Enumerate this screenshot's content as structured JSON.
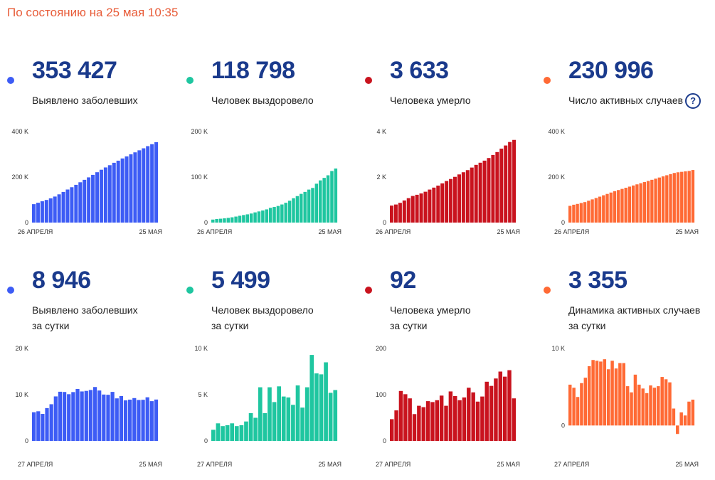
{
  "header": "По состоянию на 25 мая 10:35",
  "cards": [
    {
      "number": "353 427",
      "label": [
        "Выявлено заболевших"
      ],
      "color": "#3d5cf5"
    },
    {
      "number": "118 798",
      "label": [
        "Человек выздоровело"
      ],
      "color": "#1fc6a0"
    },
    {
      "number": "3 633",
      "label": [
        "Человека умерло"
      ],
      "color": "#c9131e"
    },
    {
      "number": "230 996",
      "label": [
        "Число активных случаев"
      ],
      "color": "#ff6a35",
      "help_icon": "question-icon",
      "help_text": "?"
    },
    {
      "number": "8 946",
      "label": [
        "Выявлено заболевших",
        "за сутки"
      ],
      "color": "#3d5cf5"
    },
    {
      "number": "5 499",
      "label": [
        "Человек выздоровело",
        "за сутки"
      ],
      "color": "#1fc6a0"
    },
    {
      "number": "92",
      "label": [
        "Человека умерло",
        "за сутки"
      ],
      "color": "#c9131e"
    },
    {
      "number": "3 355",
      "label": [
        "Динамика активных случаев",
        "за сутки"
      ],
      "color": "#ff6a35"
    }
  ],
  "chart_data": [
    {
      "type": "bar",
      "x_start": "26 АПРЕЛЯ",
      "x_end": "25 МАЯ",
      "yticks": [
        "400 K",
        "200 K",
        "0"
      ],
      "ylim": [
        0,
        400000
      ],
      "grid": false,
      "values": [
        80900,
        87100,
        93600,
        99400,
        106500,
        114400,
        124100,
        134700,
        145300,
        155400,
        165900,
        177200,
        187900,
        198700,
        209700,
        221300,
        232200,
        242300,
        252200,
        262800,
        272000,
        281800,
        290700,
        299900,
        308700,
        317600,
        326400,
        335900,
        344500,
        353427
      ]
    },
    {
      "type": "bar",
      "x_start": "26 АПРЕЛЯ",
      "x_end": "25 МАЯ",
      "yticks": [
        "200 K",
        "100 K",
        "0"
      ],
      "ylim": [
        0,
        200000
      ],
      "grid": false,
      "values": [
        6600,
        7800,
        8500,
        9300,
        10300,
        11600,
        13200,
        15000,
        16600,
        18100,
        19900,
        22400,
        24500,
        26600,
        29000,
        32400,
        34300,
        36500,
        39800,
        43500,
        48000,
        53500,
        58200,
        63100,
        67400,
        72500,
        76100,
        85400,
        92700,
        98200,
        103900,
        113300,
        118798
      ]
    },
    {
      "type": "bar",
      "x_start": "26 АПРЕЛЯ",
      "x_end": "25 МАЯ",
      "yticks": [
        "4 K",
        "2 K",
        "0"
      ],
      "ylim": [
        0,
        4000
      ],
      "grid": false,
      "values": [
        747,
        794,
        867,
        972,
        1073,
        1169,
        1222,
        1280,
        1356,
        1451,
        1537,
        1625,
        1723,
        1827,
        1915,
        2009,
        2116,
        2212,
        2305,
        2418,
        2537,
        2631,
        2722,
        2837,
        2972,
        3099,
        3249,
        3388,
        3541,
        3633
      ]
    },
    {
      "type": "bar",
      "x_start": "26 АПРЕЛЯ",
      "x_end": "25 МАЯ",
      "yticks": [
        "400 K",
        "200 K",
        "0"
      ],
      "ylim": [
        0,
        400000
      ],
      "grid": false,
      "values": [
        73500,
        78500,
        82000,
        86000,
        90000,
        96000,
        102000,
        108000,
        114000,
        120000,
        126000,
        132000,
        138000,
        143000,
        148000,
        153000,
        158000,
        163000,
        168000,
        173000,
        178000,
        183000,
        188000,
        193000,
        198000,
        203000,
        208000,
        213000,
        218000,
        221000,
        223000,
        225000,
        227000,
        230996
      ]
    },
    {
      "type": "bar",
      "x_start": "27 АПРЕЛЯ",
      "x_end": "25 МАЯ",
      "yticks": [
        "20 K",
        "10 K",
        "0"
      ],
      "ylim": [
        0,
        20000
      ],
      "grid": false,
      "values": [
        6198,
        6411,
        5841,
        7099,
        7933,
        9623,
        10633,
        10581,
        10102,
        10559,
        11231,
        10699,
        10817,
        11012,
        11656,
        10899,
        10028,
        9974,
        10598,
        9200,
        9709,
        8764,
        8926,
        9263,
        8849,
        8894,
        9434,
        8599,
        8946
      ]
    },
    {
      "type": "bar",
      "x_start": "27 АПРЕЛЯ",
      "x_end": "25 МАЯ",
      "yticks": [
        "10 K",
        "5 K",
        "0"
      ],
      "ylim": [
        0,
        10000
      ],
      "grid": false,
      "values": [
        1200,
        1900,
        1600,
        1700,
        1900,
        1600,
        1700,
        2100,
        3000,
        2500,
        5800,
        3000,
        5800,
        4200,
        5900,
        4800,
        4700,
        3900,
        6000,
        3600,
        5800,
        9300,
        7300,
        7200,
        8500,
        5200,
        5499
      ]
    },
    {
      "type": "bar",
      "x_start": "27 АПРЕЛЯ",
      "x_end": "25 МАЯ",
      "yticks": [
        "200",
        "100",
        "0"
      ],
      "ylim": [
        0,
        200
      ],
      "grid": false,
      "values": [
        47,
        66,
        108,
        101,
        92,
        58,
        76,
        73,
        86,
        84,
        88,
        98,
        76,
        107,
        97,
        88,
        94,
        115,
        105,
        85,
        96,
        128,
        119,
        135,
        150,
        139,
        153,
        92
      ]
    },
    {
      "type": "bar",
      "x_start": "27 АПРЕЛЯ",
      "x_end": "25 МАЯ",
      "yticks": [
        "10 K",
        "0"
      ],
      "ylim": [
        -2000,
        10000
      ],
      "grid": false,
      "values": [
        5300,
        4900,
        3700,
        5500,
        6200,
        7700,
        8500,
        8400,
        8300,
        8600,
        7300,
        8400,
        7400,
        8100,
        8100,
        5100,
        4300,
        6600,
        5300,
        4800,
        4200,
        5200,
        4900,
        5100,
        6300,
        6000,
        5600,
        2200,
        -1100,
        1700,
        1300,
        3100,
        3355
      ]
    }
  ]
}
